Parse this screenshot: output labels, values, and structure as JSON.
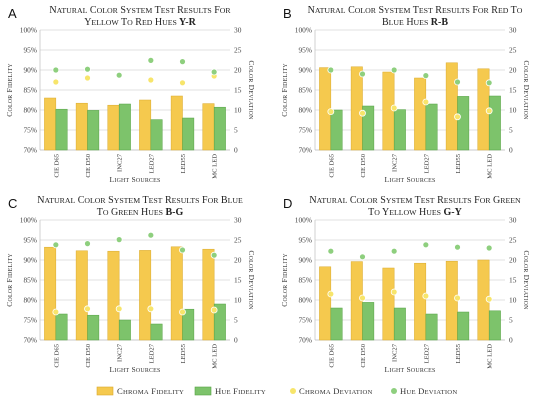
{
  "colors": {
    "chroma_fidelity": "#F5C94E",
    "hue_fidelity": "#7DC36B",
    "chroma_deviation": "#F7E56B",
    "hue_deviation": "#8ECF7E",
    "grid": "#D9D9D9"
  },
  "legend": {
    "items": [
      {
        "label": "Chroma fidelity",
        "kind": "bar",
        "color_key": "chroma_fidelity"
      },
      {
        "label": "Hue fidelity",
        "kind": "bar",
        "color_key": "hue_fidelity"
      },
      {
        "label": "Chroma deviation",
        "kind": "dot",
        "color_key": "chroma_deviation"
      },
      {
        "label": "Hue deviation",
        "kind": "dot",
        "color_key": "hue_deviation"
      }
    ]
  },
  "chart_data": [
    {
      "panel_label": "A",
      "type": "bar",
      "title_line1": "Natural Color System test results for",
      "title_line2": "yellow to red hues",
      "title_bold": "Y-R",
      "xlabel": "Light sources",
      "ylabel": "Color fidelity",
      "y2label": "Color deviation",
      "categories": [
        "CIE D65",
        "CIE D50",
        "INC27",
        "LED27",
        "LED55",
        "MC LED"
      ],
      "ylim": [
        70,
        100
      ],
      "yticks": [
        70,
        75,
        80,
        85,
        90,
        95,
        100
      ],
      "y2lim": [
        0,
        30
      ],
      "y2ticks": [
        0,
        5,
        10,
        15,
        20,
        25,
        30
      ],
      "series": [
        {
          "name": "Chroma fidelity",
          "axis": "left",
          "values": [
            83,
            81.7,
            81.2,
            82.5,
            83.5,
            81.6
          ]
        },
        {
          "name": "Hue fidelity",
          "axis": "left",
          "values": [
            80.2,
            79.9,
            81.5,
            77.6,
            78,
            80.7
          ]
        },
        {
          "name": "Chroma deviation",
          "axis": "right",
          "values": [
            17,
            18,
            null,
            17.5,
            16.8,
            18.5
          ]
        },
        {
          "name": "Hue deviation",
          "axis": "right",
          "values": [
            20,
            20.2,
            18.7,
            22.4,
            22.1,
            19.5
          ]
        }
      ]
    },
    {
      "panel_label": "B",
      "type": "bar",
      "title_line1": "Natural Color System test results for red to",
      "title_line2": "blue hues",
      "title_bold": "R-B",
      "xlabel": "Light sources",
      "ylabel": "Color fidelity",
      "y2label": "Color deviation",
      "categories": [
        "CIE D65",
        "CIE D50",
        "INC27",
        "LED27",
        "LED55",
        "MC LED"
      ],
      "ylim": [
        70,
        100
      ],
      "yticks": [
        70,
        75,
        80,
        85,
        90,
        95,
        100
      ],
      "y2lim": [
        0,
        30
      ],
      "y2ticks": [
        0,
        5,
        10,
        15,
        20,
        25,
        30
      ],
      "series": [
        {
          "name": "Chroma fidelity",
          "axis": "left",
          "values": [
            90.6,
            90.8,
            89.5,
            88,
            91.8,
            90.3
          ]
        },
        {
          "name": "Hue fidelity",
          "axis": "left",
          "values": [
            80,
            81,
            80.1,
            81.5,
            83.4,
            83.5
          ]
        },
        {
          "name": "Chroma deviation",
          "axis": "right",
          "values": [
            9.6,
            9.2,
            10.5,
            12,
            8.3,
            9.8
          ]
        },
        {
          "name": "Hue deviation",
          "axis": "right",
          "values": [
            20,
            19,
            20,
            18.6,
            17,
            16.8
          ]
        }
      ]
    },
    {
      "panel_label": "C",
      "type": "bar",
      "title_line1": "Natural Color System test results for blue",
      "title_line2": "to green hues",
      "title_bold": "B-G",
      "xlabel": "Light sources",
      "ylabel": "Color fidelity",
      "y2label": "Color deviation",
      "categories": [
        "CIE D65",
        "CIE D50",
        "INC27",
        "LED27",
        "LED55",
        "MC LED"
      ],
      "ylim": [
        70,
        100
      ],
      "yticks": [
        70,
        75,
        80,
        85,
        90,
        95,
        100
      ],
      "y2lim": [
        0,
        30
      ],
      "y2ticks": [
        0,
        5,
        10,
        15,
        20,
        25,
        30
      ],
      "series": [
        {
          "name": "Chroma fidelity",
          "axis": "left",
          "values": [
            93.2,
            92.3,
            92.2,
            92.4,
            93.3,
            92.7
          ]
        },
        {
          "name": "Hue fidelity",
          "axis": "left",
          "values": [
            76.5,
            76.2,
            75,
            74,
            77.7,
            79
          ]
        },
        {
          "name": "Chroma deviation",
          "axis": "right",
          "values": [
            7,
            7.8,
            7.8,
            7.8,
            7,
            7.5
          ]
        },
        {
          "name": "Hue deviation",
          "axis": "right",
          "values": [
            23.8,
            24.1,
            25.1,
            26.2,
            22.5,
            21.2
          ]
        }
      ]
    },
    {
      "panel_label": "D",
      "type": "bar",
      "title_line1": "Natural Color System test results for green",
      "title_line2": "to yellow hues",
      "title_bold": "G-Y",
      "xlabel": "Light sources",
      "ylabel": "Color fidelity",
      "y2label": "Color deviation",
      "categories": [
        "CIE D65",
        "CIE D50",
        "INC27",
        "LED27",
        "LED55",
        "MC LED"
      ],
      "ylim": [
        70,
        100
      ],
      "yticks": [
        70,
        75,
        80,
        85,
        90,
        95,
        100
      ],
      "y2lim": [
        0,
        30
      ],
      "y2ticks": [
        0,
        5,
        10,
        15,
        20,
        25,
        30
      ],
      "series": [
        {
          "name": "Chroma fidelity",
          "axis": "left",
          "values": [
            88.3,
            89.6,
            88,
            89.2,
            89.7,
            90
          ]
        },
        {
          "name": "Hue fidelity",
          "axis": "left",
          "values": [
            78,
            79.4,
            78,
            76.5,
            77,
            77.3
          ]
        },
        {
          "name": "Chroma deviation",
          "axis": "right",
          "values": [
            11.5,
            10.5,
            12,
            11,
            10.5,
            10.2
          ]
        },
        {
          "name": "Hue deviation",
          "axis": "right",
          "values": [
            22.2,
            20.8,
            22.2,
            23.8,
            23.2,
            23
          ]
        }
      ]
    }
  ]
}
